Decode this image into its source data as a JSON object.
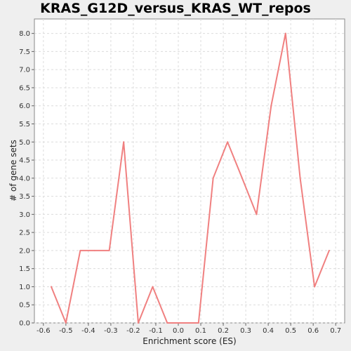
{
  "chart_data": {
    "type": "line",
    "title": "KRAS_G12D_versus_KRAS_WT_repos",
    "xlabel": "Enrichment score (ES)",
    "ylabel": "# of gene sets",
    "xlim": [
      -0.64,
      0.74
    ],
    "ylim": [
      0.0,
      8.4
    ],
    "x_ticks": [
      -0.6,
      -0.5,
      -0.4,
      -0.3,
      -0.2,
      -0.1,
      0.0,
      0.1,
      0.2,
      0.3,
      0.4,
      0.5,
      0.6,
      0.7
    ],
    "x_tick_labels": [
      "-0.6",
      "-0.5",
      "-0.4",
      "-0.3",
      "-0.2",
      "-0.1",
      "0.0",
      "0.1",
      "0.2",
      "0.3",
      "0.4",
      "0.5",
      "0.6",
      "0.7"
    ],
    "y_ticks": [
      0.0,
      0.5,
      1.0,
      1.5,
      2.0,
      2.5,
      3.0,
      3.5,
      4.0,
      4.5,
      5.0,
      5.5,
      6.0,
      6.5,
      7.0,
      7.5,
      8.0
    ],
    "y_tick_labels": [
      "0.0",
      "0.5",
      "1.0",
      "1.5",
      "2.0",
      "2.5",
      "3.0",
      "3.5",
      "4.0",
      "4.5",
      "5.0",
      "5.5",
      "6.0",
      "6.5",
      "7.0",
      "7.5",
      "8.0"
    ],
    "grid": true,
    "legend": false,
    "series": [
      {
        "color": "#f08080",
        "x": [
          -0.565,
          -0.5,
          -0.436,
          -0.372,
          -0.307,
          -0.243,
          -0.178,
          -0.114,
          -0.049,
          0.015,
          0.09,
          0.155,
          0.219,
          0.284,
          0.348,
          0.413,
          0.477,
          0.542,
          0.606,
          0.671
        ],
        "y": [
          1,
          0,
          2,
          2,
          2,
          5,
          0,
          1,
          0,
          0,
          0,
          4,
          5,
          4,
          3,
          6,
          8,
          4,
          1,
          2
        ]
      }
    ]
  }
}
